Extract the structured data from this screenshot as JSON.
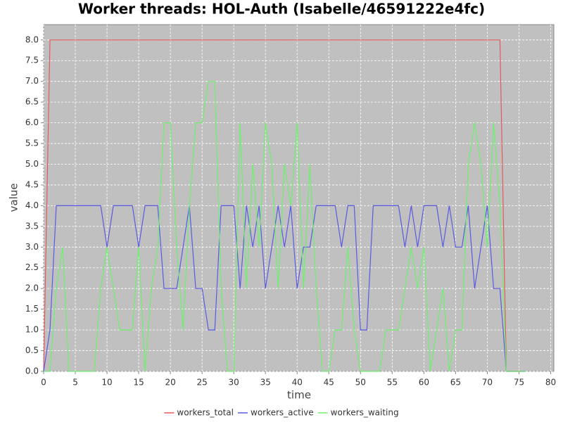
{
  "chart_data": {
    "type": "line",
    "title": "Worker threads: HOL-Auth (Isabelle/46591222e4fc)",
    "x_label": "time",
    "y_label": "value",
    "x": [
      0,
      1,
      2,
      3,
      4,
      5,
      6,
      7,
      8,
      9,
      10,
      11,
      12,
      13,
      14,
      15,
      16,
      17,
      18,
      19,
      20,
      21,
      22,
      23,
      24,
      25,
      26,
      27,
      28,
      29,
      30,
      31,
      32,
      33,
      34,
      35,
      36,
      37,
      38,
      39,
      40,
      41,
      42,
      43,
      44,
      45,
      46,
      47,
      48,
      49,
      50,
      51,
      52,
      53,
      54,
      55,
      56,
      57,
      58,
      59,
      60,
      61,
      62,
      63,
      64,
      65,
      66,
      67,
      68,
      69,
      70,
      71,
      72,
      73,
      74,
      75,
      76
    ],
    "series": [
      {
        "name": "workers_total",
        "color": "#e35a5a",
        "values": [
          0,
          8,
          8,
          8,
          8,
          8,
          8,
          8,
          8,
          8,
          8,
          8,
          8,
          8,
          8,
          8,
          8,
          8,
          8,
          8,
          8,
          8,
          8,
          8,
          8,
          8,
          8,
          8,
          8,
          8,
          8,
          8,
          8,
          8,
          8,
          8,
          8,
          8,
          8,
          8,
          8,
          8,
          8,
          8,
          8,
          8,
          8,
          8,
          8,
          8,
          8,
          8,
          8,
          8,
          8,
          8,
          8,
          8,
          8,
          8,
          8,
          8,
          8,
          8,
          8,
          8,
          8,
          8,
          8,
          8,
          8,
          8,
          8,
          0,
          0,
          0,
          0
        ]
      },
      {
        "name": "workers_active",
        "color": "#5a5ae3",
        "values": [
          0,
          1,
          4,
          4,
          4,
          4,
          4,
          4,
          4,
          4,
          3,
          4,
          4,
          4,
          4,
          3,
          4,
          4,
          4,
          2,
          2,
          2,
          3,
          4,
          2,
          2,
          1,
          1,
          4,
          4,
          4,
          2,
          4,
          3,
          4,
          2,
          3,
          4,
          3,
          4,
          2,
          3,
          3,
          4,
          4,
          4,
          4,
          3,
          4,
          4,
          1,
          1,
          4,
          4,
          4,
          4,
          4,
          3,
          4,
          3,
          4,
          4,
          4,
          3,
          4,
          3,
          3,
          4,
          2,
          3,
          4,
          2,
          2,
          0,
          0,
          0,
          0
        ]
      },
      {
        "name": "workers_waiting",
        "color": "#6ef06e",
        "values": [
          0,
          0,
          2,
          3,
          0,
          0,
          0,
          0,
          0,
          2,
          3,
          2,
          1,
          1,
          1,
          3,
          0,
          2,
          3,
          6,
          6,
          3,
          1,
          4,
          6,
          6,
          7,
          7,
          2,
          0,
          0,
          6,
          2,
          5,
          3,
          6,
          5,
          2,
          5,
          4,
          6,
          2,
          5,
          2,
          0,
          0,
          1,
          1,
          3,
          1,
          0,
          0,
          0,
          0,
          1,
          1,
          1,
          2,
          3,
          2,
          3,
          0,
          1,
          2,
          0,
          1,
          1,
          5,
          6,
          5,
          3,
          6,
          4,
          0,
          0,
          0,
          0
        ]
      }
    ],
    "xlim": [
      0,
      80.5
    ],
    "ylim": [
      0,
      8.37
    ],
    "xticks": [
      0,
      5,
      10,
      15,
      20,
      25,
      30,
      35,
      40,
      45,
      50,
      55,
      60,
      65,
      70,
      75,
      80
    ],
    "yticks": [
      {
        "value": 0,
        "label": "0.0"
      },
      {
        "value": 0.5,
        "label": "0.5"
      },
      {
        "value": 1,
        "label": "1.0"
      },
      {
        "value": 1.5,
        "label": "1.5"
      },
      {
        "value": 2,
        "label": "2.0"
      },
      {
        "value": 2.5,
        "label": "2.5"
      },
      {
        "value": 3,
        "label": "3.0"
      },
      {
        "value": 3.5,
        "label": "3.5"
      },
      {
        "value": 4,
        "label": "4.0"
      },
      {
        "value": 4.5,
        "label": "4.5"
      },
      {
        "value": 5,
        "label": "5.0"
      },
      {
        "value": 5.5,
        "label": "5.5"
      },
      {
        "value": 6,
        "label": "6.0"
      },
      {
        "value": 6.5,
        "label": "6.5"
      },
      {
        "value": 7,
        "label": "7.0"
      },
      {
        "value": 7.5,
        "label": "7.5"
      },
      {
        "value": 8,
        "label": "8.0"
      }
    ],
    "grid": true,
    "legend": "bottom"
  }
}
